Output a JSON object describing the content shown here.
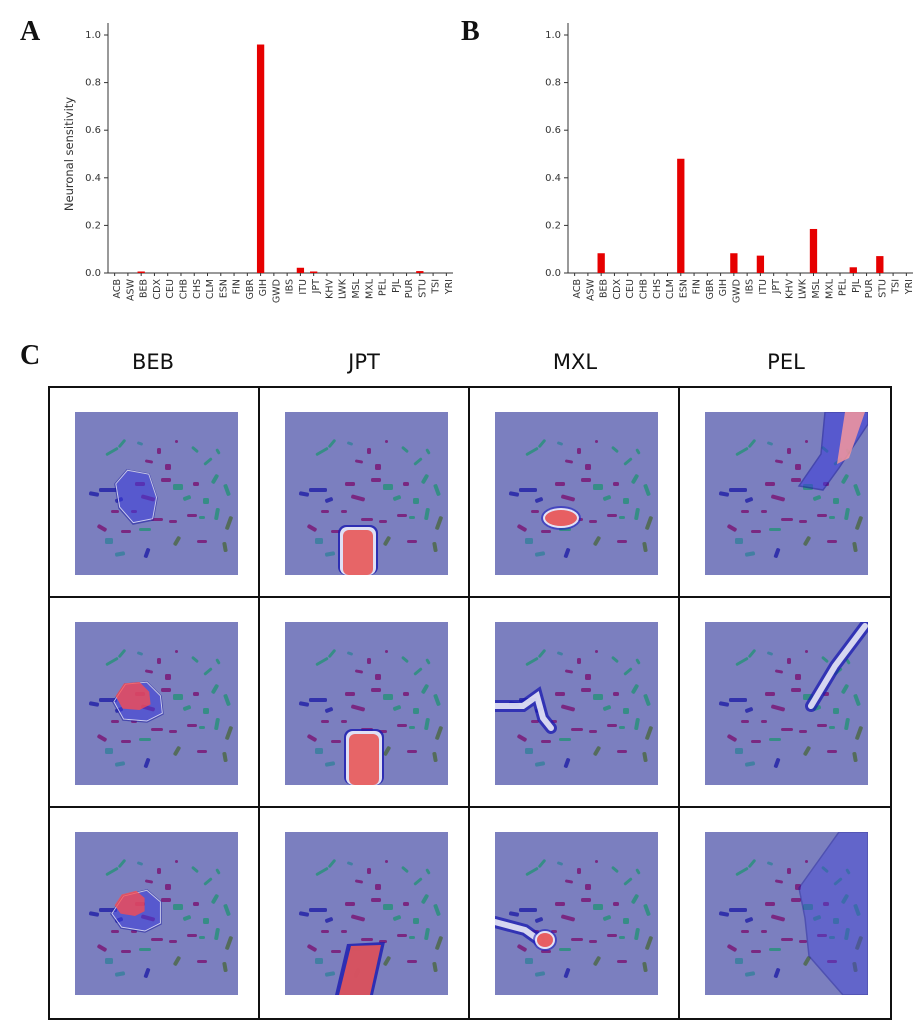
{
  "panels": {
    "a_letter": "A",
    "b_letter": "B",
    "c_letter": "C"
  },
  "chart_data": [
    {
      "type": "bar",
      "panel": "A",
      "title": "",
      "xlabel": "",
      "ylabel": "Neuronal sensitivity",
      "ylim": [
        0.0,
        1.0
      ],
      "yticks": [
        "0.0",
        "0.2",
        "0.4",
        "0.6",
        "0.8",
        "1.0"
      ],
      "categories": [
        "ACB",
        "ASW",
        "BEB",
        "CDX",
        "CEU",
        "CHB",
        "CHS",
        "CLM",
        "ESN",
        "FIN",
        "GBR",
        "GIH",
        "GWD",
        "IBS",
        "ITU",
        "JPT",
        "KHV",
        "LWK",
        "MSL",
        "MXL",
        "PEL",
        "PJL",
        "PUR",
        "STU",
        "TSI",
        "YRI"
      ],
      "values": [
        0,
        0,
        0.003,
        0,
        0,
        0,
        0,
        0,
        0,
        0,
        0,
        0.96,
        0,
        0,
        0.022,
        0.003,
        0,
        0,
        0,
        0,
        0,
        0,
        0,
        0.008,
        0,
        0
      ],
      "bar_color": "#e60000"
    },
    {
      "type": "bar",
      "panel": "B",
      "title": "",
      "xlabel": "",
      "ylabel": "",
      "ylim": [
        0.0,
        1.0
      ],
      "yticks": [
        "0.0",
        "0.2",
        "0.4",
        "0.6",
        "0.8",
        "1.0"
      ],
      "categories": [
        "ACB",
        "ASW",
        "BEB",
        "CDX",
        "CEU",
        "CHB",
        "CHS",
        "CLM",
        "ESN",
        "FIN",
        "GBR",
        "GIH",
        "GWD",
        "IBS",
        "ITU",
        "JPT",
        "KHV",
        "LWK",
        "MSL",
        "MXL",
        "PEL",
        "PJL",
        "PUR",
        "STU",
        "TSI",
        "YRI"
      ],
      "values": [
        0,
        0,
        0.083,
        0,
        0,
        0,
        0,
        0,
        0.48,
        0,
        0,
        0,
        0.083,
        0,
        0.073,
        0,
        0,
        0,
        0.185,
        0,
        0,
        0.024,
        0,
        0.071,
        0,
        0
      ],
      "bar_color": "#e60000"
    }
  ],
  "panel_c": {
    "columns": [
      "BEB",
      "JPT",
      "MXL",
      "PEL"
    ],
    "background_color": "#7b7fbf",
    "cluster_colors": [
      "#2a2aa8",
      "#7a1f7a",
      "#2f8f7f",
      "#3c7f9f",
      "#8a3f8a",
      "#506a50"
    ]
  }
}
